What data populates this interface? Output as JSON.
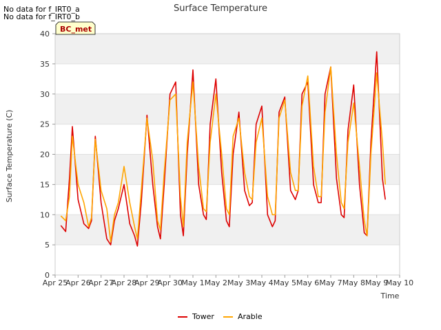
{
  "header": {
    "nodata_lines": [
      "No data for f_IRT0_a",
      "No data for f_IRT0_b"
    ],
    "site_label": "BC_met"
  },
  "colors": {
    "Tower": "#dd0000",
    "Arable": "#ffa500",
    "band": "#f0f0f0",
    "axis": "#cccccc"
  },
  "chart_data": {
    "type": "line",
    "title": "Surface Temperature",
    "xlabel": "Time",
    "ylabel": "Surface Temperature (C)",
    "ylim": [
      0,
      40
    ],
    "yticks": [
      0,
      5,
      10,
      15,
      20,
      25,
      30,
      35,
      40
    ],
    "xlim": [
      "Apr 25",
      "May 10"
    ],
    "xticks": [
      "Apr 25",
      "Apr 26",
      "Apr 27",
      "Apr 28",
      "Apr 29",
      "Apr 30",
      "May 1",
      "May 2",
      "May 3",
      "May 4",
      "May 5",
      "May 6",
      "May 7",
      "May 8",
      "May 9",
      "May 10"
    ],
    "grid": true,
    "legend_position": "bottom",
    "series": [
      {
        "name": "Tower",
        "x": [
          "Apr 25 06:00",
          "Apr 25 11:00",
          "Apr 25 15:00",
          "Apr 25 18:00",
          "Apr 26 00:00",
          "Apr 26 06:00",
          "Apr 26 11:00",
          "Apr 26 14:00",
          "Apr 26 18:00",
          "Apr 27 00:00",
          "Apr 27 06:00",
          "Apr 27 10:00",
          "Apr 27 14:00",
          "Apr 27 18:00",
          "Apr 28 00:00",
          "Apr 28 06:00",
          "Apr 28 11:00",
          "Apr 28 14:00",
          "Apr 28 18:00",
          "Apr 29 00:00",
          "Apr 29 06:00",
          "Apr 29 11:00",
          "Apr 29 14:00",
          "Apr 29 18:00",
          "Apr 30 00:00",
          "Apr 30 06:00",
          "Apr 30 11:00",
          "Apr 30 14:00",
          "Apr 30 18:00",
          "May 1 00:00",
          "May 1 06:00",
          "May 1 11:00",
          "May 1 14:00",
          "May 1 18:00",
          "May 2 00:00",
          "May 2 06:00",
          "May 2 11:00",
          "May 2 14:00",
          "May 2 18:00",
          "May 3 00:00",
          "May 3 06:00",
          "May 3 11:00",
          "May 3 14:00",
          "May 3 18:00",
          "May 4 00:00",
          "May 4 06:00",
          "May 4 11:00",
          "May 4 14:00",
          "May 4 18:00",
          "May 5 00:00",
          "May 5 06:00",
          "May 5 11:00",
          "May 5 14:00",
          "May 5 18:00",
          "May 6 00:00",
          "May 6 06:00",
          "May 6 11:00",
          "May 6 14:00",
          "May 6 18:00",
          "May 7 00:00",
          "May 7 06:00",
          "May 7 11:00",
          "May 7 14:00",
          "May 7 18:00",
          "May 8 00:00",
          "May 8 06:00",
          "May 8 11:00",
          "May 8 14:00",
          "May 8 18:00",
          "May 9 00:00",
          "May 9 06:00",
          "May 9 09:00"
        ],
        "values": [
          8.2,
          7.2,
          16,
          24.6,
          12.5,
          8.5,
          7.7,
          9,
          23,
          12,
          6,
          5,
          9,
          11,
          15,
          8.5,
          6.5,
          4.8,
          12,
          26.5,
          15,
          8,
          6,
          15,
          30,
          32,
          10,
          6.5,
          20,
          34,
          15,
          10,
          9.2,
          25,
          32.5,
          17,
          9,
          8,
          20,
          27,
          14,
          11.5,
          12,
          25,
          28,
          10,
          8,
          9,
          27,
          29.5,
          14,
          12.5,
          14,
          30,
          32,
          15,
          12,
          12,
          30,
          34.5,
          16,
          10,
          9.5,
          24,
          31.5,
          15,
          7,
          6.5,
          22,
          37,
          16,
          12.5
        ]
      },
      {
        "name": "Arable",
        "x": [
          "Apr 25 06:00",
          "Apr 25 11:00",
          "Apr 25 15:00",
          "Apr 25 18:00",
          "Apr 26 00:00",
          "Apr 26 06:00",
          "Apr 26 11:00",
          "Apr 26 14:00",
          "Apr 26 18:00",
          "Apr 27 00:00",
          "Apr 27 06:00",
          "Apr 27 10:00",
          "Apr 27 14:00",
          "Apr 27 18:00",
          "Apr 28 00:00",
          "Apr 28 06:00",
          "Apr 28 11:00",
          "Apr 28 14:00",
          "Apr 28 18:00",
          "Apr 29 00:00",
          "Apr 29 06:00",
          "Apr 29 11:00",
          "Apr 29 14:00",
          "Apr 29 18:00",
          "Apr 30 00:00",
          "Apr 30 06:00",
          "Apr 30 11:00",
          "Apr 30 14:00",
          "Apr 30 18:00",
          "May 1 00:00",
          "May 1 06:00",
          "May 1 11:00",
          "May 1 14:00",
          "May 1 18:00",
          "May 2 00:00",
          "May 2 06:00",
          "May 2 11:00",
          "May 2 14:00",
          "May 2 18:00",
          "May 3 00:00",
          "May 3 06:00",
          "May 3 11:00",
          "May 3 14:00",
          "May 3 18:00",
          "May 4 00:00",
          "May 4 06:00",
          "May 4 11:00",
          "May 4 14:00",
          "May 4 18:00",
          "May 5 00:00",
          "May 5 06:00",
          "May 5 11:00",
          "May 5 14:00",
          "May 5 18:00",
          "May 6 00:00",
          "May 6 06:00",
          "May 6 11:00",
          "May 6 14:00",
          "May 6 18:00",
          "May 7 00:00",
          "May 7 06:00",
          "May 7 11:00",
          "May 7 14:00",
          "May 7 18:00",
          "May 8 00:00",
          "May 8 06:00",
          "May 8 11:00",
          "May 8 14:00",
          "May 8 18:00",
          "May 9 00:00",
          "May 9 06:00",
          "May 9 09:00"
        ],
        "values": [
          9.8,
          9,
          13,
          23,
          15,
          12,
          8,
          9.5,
          22.5,
          14,
          11,
          5.5,
          10,
          12,
          18,
          12,
          8,
          6,
          14,
          26,
          19,
          9,
          7.5,
          17,
          29,
          30,
          13,
          8,
          22,
          32,
          18,
          11,
          10.5,
          22,
          30,
          20,
          11,
          10,
          23,
          26,
          17,
          13,
          12.5,
          22,
          26,
          13,
          10,
          10,
          26,
          29,
          17,
          14,
          14,
          28,
          33,
          18,
          13,
          13,
          27,
          34.5,
          20,
          12,
          11,
          22,
          28.5,
          18,
          9,
          6.5,
          20,
          33.5,
          22,
          15
        ]
      }
    ]
  }
}
